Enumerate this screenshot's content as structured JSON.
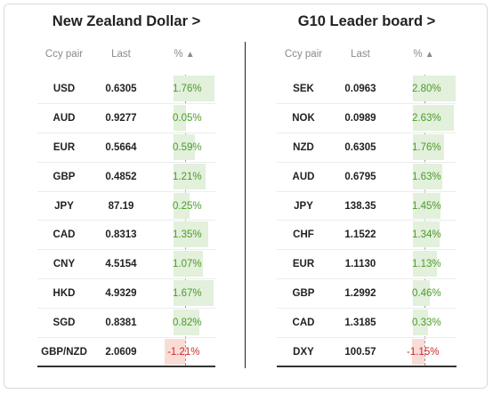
{
  "left": {
    "title": "New Zealand Dollar >",
    "headers": {
      "ccy": "Ccy pair",
      "last": "Last",
      "pct": "%"
    },
    "rows": [
      {
        "ccy": "USD",
        "last": "0.6305",
        "pct": "1.76%",
        "value": 1.76
      },
      {
        "ccy": "AUD",
        "last": "0.9277",
        "pct": "0.05%",
        "value": 0.05
      },
      {
        "ccy": "EUR",
        "last": "0.5664",
        "pct": "0.59%",
        "value": 0.59
      },
      {
        "ccy": "GBP",
        "last": "0.4852",
        "pct": "1.21%",
        "value": 1.21
      },
      {
        "ccy": "JPY",
        "last": "87.19",
        "pct": "0.25%",
        "value": 0.25
      },
      {
        "ccy": "CAD",
        "last": "0.8313",
        "pct": "1.35%",
        "value": 1.35
      },
      {
        "ccy": "CNY",
        "last": "4.5154",
        "pct": "1.07%",
        "value": 1.07
      },
      {
        "ccy": "HKD",
        "last": "4.9329",
        "pct": "1.67%",
        "value": 1.67
      },
      {
        "ccy": "SGD",
        "last": "0.8381",
        "pct": "0.82%",
        "value": 0.82
      },
      {
        "ccy": "GBP/NZD",
        "last": "2.0609",
        "pct": "-1.21%",
        "value": -1.21
      }
    ]
  },
  "right": {
    "title": "G10 Leader board >",
    "headers": {
      "ccy": "Ccy pair",
      "last": "Last",
      "pct": "%"
    },
    "rows": [
      {
        "ccy": "SEK",
        "last": "0.0963",
        "pct": "2.80%",
        "value": 2.8
      },
      {
        "ccy": "NOK",
        "last": "0.0989",
        "pct": "2.63%",
        "value": 2.63
      },
      {
        "ccy": "NZD",
        "last": "0.6305",
        "pct": "1.76%",
        "value": 1.76
      },
      {
        "ccy": "AUD",
        "last": "0.6795",
        "pct": "1.63%",
        "value": 1.63
      },
      {
        "ccy": "JPY",
        "last": "138.35",
        "pct": "1.45%",
        "value": 1.45
      },
      {
        "ccy": "CHF",
        "last": "1.1522",
        "pct": "1.34%",
        "value": 1.34
      },
      {
        "ccy": "EUR",
        "last": "1.1130",
        "pct": "1.13%",
        "value": 1.13
      },
      {
        "ccy": "GBP",
        "last": "1.2992",
        "pct": "0.46%",
        "value": 0.46
      },
      {
        "ccy": "CAD",
        "last": "1.3185",
        "pct": "0.33%",
        "value": 0.33
      },
      {
        "ccy": "DXY",
        "last": "100.57",
        "pct": "-1.15%",
        "value": -1.15
      }
    ]
  },
  "sort_icon": "sort-up-triangle-icon",
  "colors": {
    "positive_bar": "#e2f0dc",
    "negative_bar": "#fadcd6",
    "positive_text": "#4c9a2a",
    "negative_text": "#cc2a2a"
  }
}
